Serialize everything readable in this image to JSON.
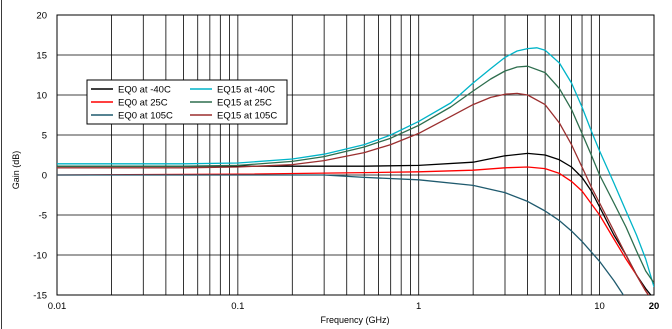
{
  "chart_data": {
    "type": "line",
    "title": "",
    "xlabel": "Frequency (GHz)",
    "ylabel": "Gain (dB)",
    "x_scale": "log",
    "xlim": [
      0.01,
      20
    ],
    "ylim": [
      -15,
      20
    ],
    "x_ticks": [
      {
        "value": 0.01,
        "label": "0.01"
      },
      {
        "value": 0.1,
        "label": "0.1"
      },
      {
        "value": 1,
        "label": "1"
      },
      {
        "value": 10,
        "label": "10"
      },
      {
        "value": 20,
        "label": "20"
      }
    ],
    "y_ticks": [
      20,
      15,
      10,
      5,
      0,
      -5,
      -10,
      -15
    ],
    "grid": true,
    "legend_position": "upper-left",
    "series": [
      {
        "name": "EQ0 at -40C",
        "color": "#000000",
        "points": [
          [
            0.01,
            1.1
          ],
          [
            0.1,
            1.1
          ],
          [
            0.5,
            1.1
          ],
          [
            1,
            1.2
          ],
          [
            2,
            1.6
          ],
          [
            3,
            2.4
          ],
          [
            4,
            2.7
          ],
          [
            5,
            2.5
          ],
          [
            6,
            1.9
          ],
          [
            7,
            1.0
          ],
          [
            8,
            -0.3
          ],
          [
            9,
            -2.0
          ],
          [
            10,
            -4.0
          ],
          [
            12,
            -7.5
          ],
          [
            14,
            -10.0
          ],
          [
            16,
            -12.5
          ],
          [
            18,
            -14.2
          ],
          [
            20,
            -15.5
          ]
        ]
      },
      {
        "name": "EQ0 at 25C",
        "color": "#ff0000",
        "points": [
          [
            0.01,
            0.0
          ],
          [
            0.1,
            0.1
          ],
          [
            0.5,
            0.3
          ],
          [
            1,
            0.4
          ],
          [
            2,
            0.6
          ],
          [
            3,
            0.9
          ],
          [
            4,
            1.0
          ],
          [
            5,
            0.8
          ],
          [
            6,
            0.2
          ],
          [
            7,
            -0.8
          ],
          [
            8,
            -2.0
          ],
          [
            10,
            -5.0
          ],
          [
            12,
            -8.0
          ],
          [
            14,
            -10.5
          ],
          [
            16,
            -12.5
          ],
          [
            18,
            -14.5
          ],
          [
            20,
            -16
          ]
        ]
      },
      {
        "name": "EQ0 at 105C",
        "color": "#1f5a6e",
        "points": [
          [
            0.01,
            0.0
          ],
          [
            0.1,
            0.0
          ],
          [
            0.3,
            0.0
          ],
          [
            0.5,
            -0.3
          ],
          [
            1,
            -0.6
          ],
          [
            2,
            -1.3
          ],
          [
            3,
            -2.2
          ],
          [
            4,
            -3.3
          ],
          [
            5,
            -4.5
          ],
          [
            6,
            -5.7
          ],
          [
            7,
            -7.0
          ],
          [
            8,
            -8.3
          ],
          [
            10,
            -10.8
          ],
          [
            12,
            -13.2
          ],
          [
            14,
            -15.5
          ]
        ]
      },
      {
        "name": "EQ15 at -40C",
        "color": "#00b4c8",
        "points": [
          [
            0.01,
            1.4
          ],
          [
            0.05,
            1.4
          ],
          [
            0.1,
            1.5
          ],
          [
            0.2,
            2.0
          ],
          [
            0.3,
            2.6
          ],
          [
            0.5,
            3.8
          ],
          [
            0.7,
            5.0
          ],
          [
            1,
            6.7
          ],
          [
            1.5,
            9.0
          ],
          [
            2,
            11.5
          ],
          [
            2.5,
            13.3
          ],
          [
            3,
            14.7
          ],
          [
            3.5,
            15.5
          ],
          [
            4,
            15.8
          ],
          [
            4.5,
            15.9
          ],
          [
            5,
            15.6
          ],
          [
            6,
            14.0
          ],
          [
            7,
            11.5
          ],
          [
            8,
            8.5
          ],
          [
            9,
            5.5
          ],
          [
            10,
            3.0
          ],
          [
            12,
            -1.0
          ],
          [
            14,
            -4.5
          ],
          [
            16,
            -7.5
          ],
          [
            18,
            -10.5
          ],
          [
            20,
            -14.0
          ]
        ]
      },
      {
        "name": "EQ15 at 25C",
        "color": "#2e6e4e",
        "points": [
          [
            0.01,
            1.1
          ],
          [
            0.05,
            1.1
          ],
          [
            0.1,
            1.2
          ],
          [
            0.2,
            1.7
          ],
          [
            0.3,
            2.3
          ],
          [
            0.5,
            3.5
          ],
          [
            0.7,
            4.6
          ],
          [
            1,
            6.2
          ],
          [
            1.5,
            8.5
          ],
          [
            2,
            10.5
          ],
          [
            2.5,
            12.0
          ],
          [
            3,
            13.0
          ],
          [
            3.5,
            13.5
          ],
          [
            4,
            13.6
          ],
          [
            5,
            12.8
          ],
          [
            6,
            10.8
          ],
          [
            7,
            8.2
          ],
          [
            8,
            5.2
          ],
          [
            9,
            2.5
          ],
          [
            10,
            0.0
          ],
          [
            12,
            -3.5
          ],
          [
            14,
            -6.5
          ],
          [
            16,
            -9.5
          ],
          [
            18,
            -12.0
          ],
          [
            20,
            -13.5
          ]
        ]
      },
      {
        "name": "EQ15 at 105C",
        "color": "#9b2f2f",
        "points": [
          [
            0.01,
            0.9
          ],
          [
            0.05,
            0.9
          ],
          [
            0.1,
            1.0
          ],
          [
            0.2,
            1.3
          ],
          [
            0.3,
            1.8
          ],
          [
            0.5,
            2.8
          ],
          [
            0.7,
            3.8
          ],
          [
            1,
            5.2
          ],
          [
            1.5,
            7.3
          ],
          [
            2,
            8.8
          ],
          [
            2.5,
            9.7
          ],
          [
            3,
            10.1
          ],
          [
            3.5,
            10.2
          ],
          [
            4,
            10.0
          ],
          [
            5,
            8.8
          ],
          [
            6,
            6.5
          ],
          [
            7,
            3.8
          ],
          [
            8,
            1.0
          ],
          [
            9,
            -1.5
          ],
          [
            10,
            -3.5
          ],
          [
            12,
            -7.0
          ],
          [
            14,
            -10.0
          ],
          [
            16,
            -12.5
          ],
          [
            18,
            -14.5
          ],
          [
            20,
            -16
          ]
        ]
      }
    ]
  }
}
